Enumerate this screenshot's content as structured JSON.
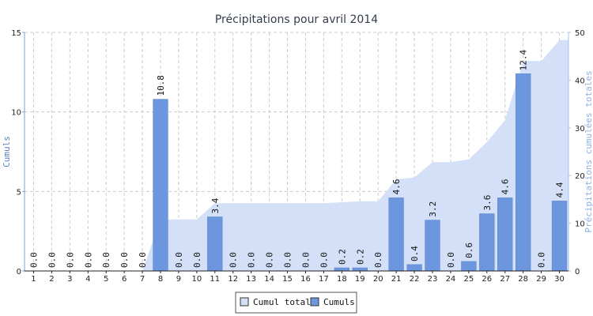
{
  "chart_data": {
    "type": "bar",
    "title": "Précipitations pour avril 2014",
    "ylabel": "Cumuls",
    "y2label": "Précipitations cumulées totales",
    "ylim": [
      0,
      15
    ],
    "y2lim": [
      0,
      50
    ],
    "yticks": [
      0,
      5,
      10,
      15
    ],
    "y2ticks": [
      0,
      10,
      20,
      30,
      40,
      50
    ],
    "grid": true,
    "legend_position": "bottom-center",
    "categories": [
      "1",
      "2",
      "3",
      "4",
      "5",
      "6",
      "7",
      "8",
      "9",
      "10",
      "11",
      "12",
      "13",
      "14",
      "15",
      "16",
      "17",
      "18",
      "19",
      "20",
      "21",
      "22",
      "23",
      "24",
      "25",
      "26",
      "27",
      "28",
      "29",
      "30"
    ],
    "series": [
      {
        "name": "Cumul total",
        "kind": "area",
        "axis": "right",
        "color": "#d3e0f8",
        "values": [
          0,
          0,
          0,
          0,
          0,
          0,
          0,
          10.8,
          10.8,
          10.8,
          14.2,
          14.2,
          14.2,
          14.2,
          14.2,
          14.2,
          14.2,
          14.4,
          14.6,
          14.6,
          19.2,
          19.6,
          22.8,
          22.8,
          23.4,
          27.0,
          31.6,
          44.0,
          44.0,
          48.4
        ]
      },
      {
        "name": "Cumuls",
        "kind": "bar",
        "axis": "left",
        "color": "#6c96de",
        "values": [
          0,
          0,
          0,
          0,
          0,
          0,
          0,
          10.8,
          0,
          0,
          3.4,
          0,
          0,
          0,
          0,
          0,
          0,
          0.2,
          0.2,
          0,
          4.6,
          0.4,
          3.2,
          0,
          0.6,
          3.6,
          4.6,
          12.4,
          0,
          4.4
        ],
        "labels": [
          "0.0",
          "0.0",
          "0.0",
          "0.0",
          "0.0",
          "0.0",
          "0.0",
          "10.8",
          "0.0",
          "0.0",
          "3.4",
          "0.0",
          "0.0",
          "0.0",
          "0.0",
          "0.0",
          "0.0",
          "0.2",
          "0.2",
          "0.0",
          "4.6",
          "0.4",
          "3.2",
          "0.0",
          "0.6",
          "3.6",
          "4.6",
          "12.4",
          "0.0",
          "4.4"
        ]
      }
    ]
  }
}
